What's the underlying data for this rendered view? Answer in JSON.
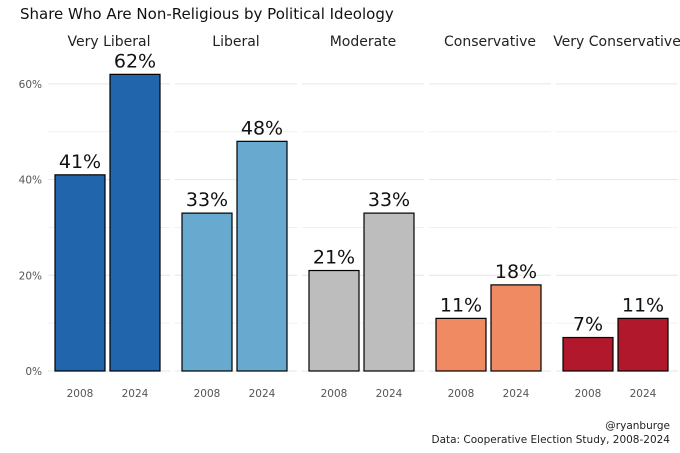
{
  "chart_data": {
    "type": "bar",
    "title": "Share Who Are Non-Religious by Political Ideology",
    "facets": [
      "Very Liberal",
      "Liberal",
      "Moderate",
      "Conservative",
      "Very Conservative"
    ],
    "categories": [
      "2008",
      "2024"
    ],
    "values": [
      [
        41,
        62
      ],
      [
        33,
        48
      ],
      [
        21,
        33
      ],
      [
        11,
        18
      ],
      [
        7,
        11
      ]
    ],
    "data_labels": [
      [
        "41%",
        "62%"
      ],
      [
        "33%",
        "48%"
      ],
      [
        "21%",
        "33%"
      ],
      [
        "11%",
        "18%"
      ],
      [
        "7%",
        "11%"
      ]
    ],
    "colors": [
      "#2166ac",
      "#67a9cf",
      "#bdbdbd",
      "#ef8a62",
      "#b2182b"
    ],
    "y_ticks": [
      "0%",
      "20%",
      "40%",
      "60%"
    ],
    "y_tick_values": [
      0,
      20,
      40,
      60
    ],
    "ylim": [
      0,
      65
    ],
    "xlabel": "",
    "ylabel": "",
    "grid": true,
    "legend": "none"
  },
  "caption": {
    "handle": "@ryanburge",
    "source": "Data: Cooperative Election Study, 2008-2024"
  }
}
